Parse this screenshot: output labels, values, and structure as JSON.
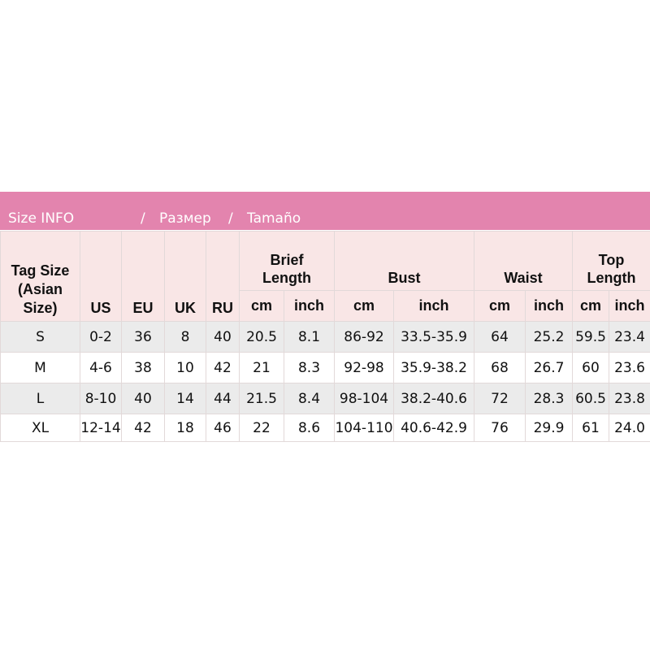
{
  "title": {
    "english": "Size INFO",
    "sep1": "/",
    "russian": "Размер",
    "sep2": "/",
    "spanish": "Tamaño"
  },
  "colors": {
    "header_bar": "#e384ae",
    "header_bg": "#f9e6e6",
    "row_alt": "#ebebeb"
  },
  "headers": {
    "tag_size": "Tag Size (Asian Size)",
    "tag_line1": "Tag Size",
    "tag_line2": "(Asian",
    "tag_line3": "Size)",
    "us": "US",
    "eu": "EU",
    "uk": "UK",
    "ru": "RU",
    "brief_length": "Brief Length",
    "bust": "Bust",
    "waist": "Waist",
    "top_length": "Top Length",
    "brief_line1": "Brief",
    "brief_line2": "Length",
    "top_line1": "Top",
    "top_line2": "Length",
    "cm": "cm",
    "inch": "inch"
  },
  "rows": [
    {
      "tag": "S",
      "us": "0-2",
      "eu": "36",
      "uk": "8",
      "ru": "40",
      "brief_cm": "20.5",
      "brief_in": "8.1",
      "bust_cm": "86-92",
      "bust_in": "33.5-35.9",
      "waist_cm": "64",
      "waist_in": "25.2",
      "top_cm": "59.5",
      "top_in": "23.4"
    },
    {
      "tag": "M",
      "us": "4-6",
      "eu": "38",
      "uk": "10",
      "ru": "42",
      "brief_cm": "21",
      "brief_in": "8.3",
      "bust_cm": "92-98",
      "bust_in": "35.9-38.2",
      "waist_cm": "68",
      "waist_in": "26.7",
      "top_cm": "60",
      "top_in": "23.6"
    },
    {
      "tag": "L",
      "us": "8-10",
      "eu": "40",
      "uk": "14",
      "ru": "44",
      "brief_cm": "21.5",
      "brief_in": "8.4",
      "bust_cm": "98-104",
      "bust_in": "38.2-40.6",
      "waist_cm": "72",
      "waist_in": "28.3",
      "top_cm": "60.5",
      "top_in": "23.8"
    },
    {
      "tag": "XL",
      "us": "12-14",
      "eu": "42",
      "uk": "18",
      "ru": "46",
      "brief_cm": "22",
      "brief_in": "8.6",
      "bust_cm": "104-110",
      "bust_in": "40.6-42.9",
      "waist_cm": "76",
      "waist_in": "29.9",
      "top_cm": "61",
      "top_in": "24.0"
    }
  ]
}
